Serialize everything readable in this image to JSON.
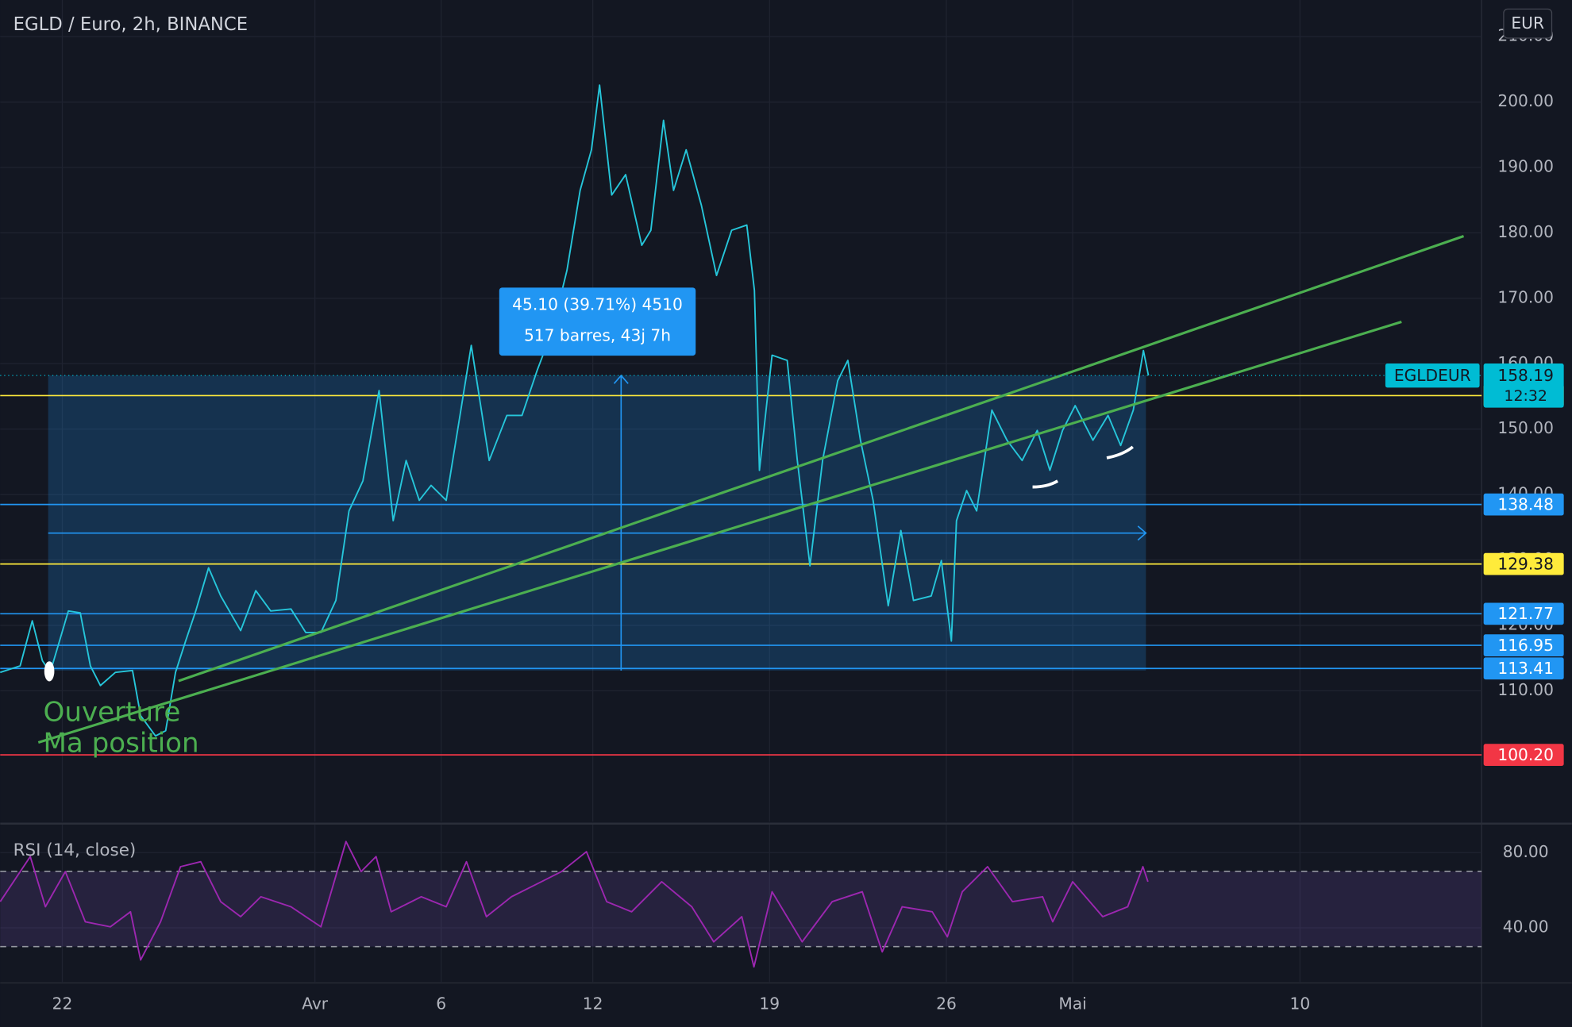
{
  "title": "EGLD / Euro, 2h, BINANCE",
  "currency": "EUR",
  "chart_data": [
    {
      "type": "line",
      "xlim": [
        -2.46,
        56.19
      ],
      "ylim": [
        90,
        215.6
      ],
      "xticks": [
        {
          "value": 0,
          "label": "22"
        },
        {
          "value": 10,
          "label": "Avr"
        },
        {
          "value": 15,
          "label": "6"
        },
        {
          "value": 21,
          "label": "12"
        },
        {
          "value": 28,
          "label": "19"
        },
        {
          "value": 35,
          "label": "26"
        },
        {
          "value": 40,
          "label": "Mai"
        },
        {
          "value": 49,
          "label": "10"
        }
      ],
      "yticks": [
        {
          "value": 110,
          "label": "110.00"
        },
        {
          "value": 120,
          "label": "120.00"
        },
        {
          "value": 130,
          "label": "130.00"
        },
        {
          "value": 140,
          "label": "140.00"
        },
        {
          "value": 150,
          "label": "150.00"
        },
        {
          "value": 160,
          "label": "160.00"
        },
        {
          "value": 170,
          "label": "170.00"
        },
        {
          "value": 180,
          "label": "180.00"
        },
        {
          "value": 190,
          "label": "190.00"
        },
        {
          "value": 200,
          "label": "200.00"
        },
        {
          "value": 210,
          "label": "210.00"
        }
      ],
      "grid": true,
      "series": [
        {
          "name": "EGLDEUR",
          "color": "#26c6da",
          "x": [
            -2.46,
            -1.67,
            -1.19,
            -0.79,
            -0.48,
            0.24,
            0.71,
            1.11,
            1.51,
            2.1,
            2.78,
            3.1,
            3.69,
            4.09,
            4.48,
            4.88,
            5.28,
            5.79,
            6.27,
            7.06,
            7.66,
            8.25,
            9.05,
            9.64,
            10.24,
            10.83,
            11.35,
            11.9,
            12.54,
            13.1,
            13.61,
            14.13,
            14.6,
            15.2,
            15.71,
            16.19,
            16.9,
            17.6,
            18.2,
            18.8,
            19.4,
            19.98,
            20.5,
            20.95,
            21.27,
            21.75,
            22.3,
            22.94,
            23.3,
            23.8,
            24.2,
            24.7,
            25.3,
            25.9,
            26.5,
            27.1,
            27.4,
            27.6,
            28.1,
            28.7,
            29.1,
            29.6,
            30.1,
            30.7,
            31.1,
            31.6,
            32.1,
            32.7,
            33.2,
            33.7,
            34.4,
            34.8,
            35.2,
            35.4,
            35.8,
            36.2,
            36.8,
            37.4,
            38.0,
            38.6,
            39.1,
            39.6,
            40.1,
            40.8,
            41.4,
            41.9,
            42.4,
            42.8,
            43.0
          ],
          "values": [
            112.8,
            113.8,
            120.7,
            114.6,
            112.8,
            122.2,
            121.9,
            113.8,
            110.8,
            112.8,
            113.1,
            106.2,
            103.1,
            103.9,
            112.8,
            117.6,
            122.2,
            128.8,
            124.5,
            119.2,
            125.3,
            122.2,
            122.5,
            118.9,
            118.9,
            123.8,
            137.5,
            142.1,
            155.9,
            136.0,
            145.2,
            139.1,
            141.4,
            139.1,
            151.3,
            162.8,
            145.2,
            152.1,
            152.1,
            159.0,
            165.1,
            174.3,
            186.5,
            192.7,
            202.6,
            185.8,
            188.9,
            178.1,
            180.4,
            197.2,
            186.5,
            192.7,
            184.2,
            173.5,
            180.4,
            181.2,
            171.2,
            143.7,
            161.3,
            160.5,
            145.2,
            129.1,
            145.2,
            157.4,
            160.5,
            148.3,
            139.1,
            123.0,
            134.5,
            123.8,
            124.5,
            129.9,
            117.6,
            136.0,
            140.6,
            137.5,
            152.9,
            148.3,
            145.2,
            149.8,
            143.7,
            149.8,
            153.6,
            148.3,
            152.1,
            147.5,
            152.9,
            162.0,
            158.2
          ]
        }
      ],
      "last_price": {
        "value": 158.19,
        "color": "#00bcd4",
        "countdown": "12:32"
      },
      "levels": [
        {
          "value": 155.12,
          "color": "#ffeb3b"
        },
        {
          "value": 138.48,
          "color": "#2196f3"
        },
        {
          "value": 129.38,
          "color": "#ffeb3b"
        },
        {
          "value": 121.77,
          "color": "#2196f3"
        },
        {
          "value": 116.95,
          "color": "#2196f3"
        },
        {
          "value": 113.41,
          "color": "#2196f3"
        },
        {
          "value": 100.2,
          "label": "100.20",
          "color": "#f23645"
        }
      ],
      "trendlines": [
        {
          "color": "#4caf50",
          "points": [
            [
              -0.95,
              102.1
            ],
            [
              53.02,
              166.4
            ]
          ]
        },
        {
          "color": "#4caf50",
          "points": [
            [
              4.6,
              111.5
            ],
            [
              55.48,
              179.5
            ]
          ]
        }
      ],
      "measure": {
        "x": [
          -0.56,
          42.9
        ],
        "values": [
          113.09,
          158.19
        ],
        "color": "#2196f3",
        "label": [
          "45.10 (39.71%) 4510",
          "517 barres, 43j 7h"
        ]
      },
      "annotations": [
        "Ouverture",
        "Ma position"
      ]
    },
    {
      "type": "line",
      "title": "RSI (14, close)",
      "xlim": [
        -2.46,
        56.19
      ],
      "ylim": [
        11.2,
        94.9
      ],
      "yticks": [
        {
          "value": 80,
          "label": "80.00"
        },
        {
          "value": 40,
          "label": "40.00"
        }
      ],
      "bands": [
        70,
        30
      ],
      "series": [
        {
          "color": "#9c27b0",
          "x": [
            -2.46,
            -1.27,
            -0.67,
            0.12,
            0.91,
            1.9,
            2.7,
            3.1,
            3.89,
            4.68,
            5.48,
            6.27,
            7.06,
            7.86,
            9.05,
            10.24,
            11.23,
            11.83,
            12.42,
            13.02,
            14.21,
            15.2,
            16.0,
            16.79,
            17.78,
            18.97,
            19.76,
            20.75,
            21.55,
            22.54,
            23.73,
            24.92,
            25.79,
            26.9,
            27.38,
            28.1,
            29.29,
            30.48,
            31.67,
            32.46,
            33.25,
            34.44,
            35.04,
            35.63,
            36.63,
            37.62,
            38.81,
            39.21,
            40.0,
            41.19,
            42.18,
            42.78,
            42.98
          ],
          "values": [
            53.9,
            77.9,
            51.2,
            69.9,
            43.2,
            40.5,
            48.5,
            22.9,
            43.2,
            72.5,
            75.2,
            53.9,
            45.9,
            56.5,
            51.2,
            40.5,
            85.9,
            69.9,
            77.9,
            48.5,
            56.5,
            51.2,
            75.2,
            45.9,
            56.5,
            64.5,
            69.9,
            80.5,
            53.9,
            48.5,
            64.5,
            51.2,
            32.5,
            45.9,
            19.2,
            59.2,
            32.5,
            53.9,
            59.2,
            27.2,
            51.2,
            48.5,
            35.2,
            59.2,
            72.5,
            53.9,
            56.5,
            43.2,
            64.5,
            45.9,
            51.2,
            72.5,
            64.5
          ]
        }
      ]
    }
  ]
}
